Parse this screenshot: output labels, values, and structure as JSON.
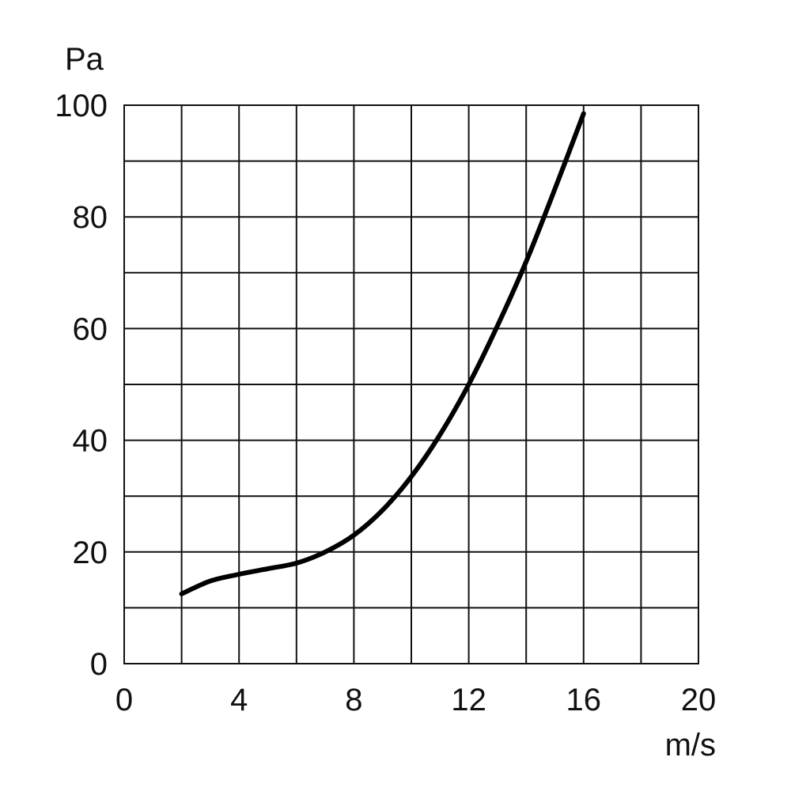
{
  "chart_data": {
    "type": "line",
    "title": "",
    "xlabel": "m/s",
    "ylabel": "Pa",
    "xlim": [
      0,
      20
    ],
    "ylim": [
      0,
      100
    ],
    "x_ticks": [
      0,
      4,
      8,
      12,
      16,
      20
    ],
    "y_ticks": [
      0,
      20,
      40,
      60,
      80,
      100
    ],
    "x_grid_step": 2,
    "y_grid_step": 10,
    "grid": true,
    "series": [
      {
        "color": "#000000",
        "x": [
          2,
          3,
          4,
          5,
          6,
          7,
          8,
          9,
          10,
          11,
          12,
          13,
          14,
          15,
          16
        ],
        "y": [
          12.5,
          14.8,
          16,
          17,
          18,
          20,
          23,
          27.5,
          33.5,
          41,
          50,
          60.5,
          72,
          85,
          98.5
        ]
      }
    ]
  }
}
